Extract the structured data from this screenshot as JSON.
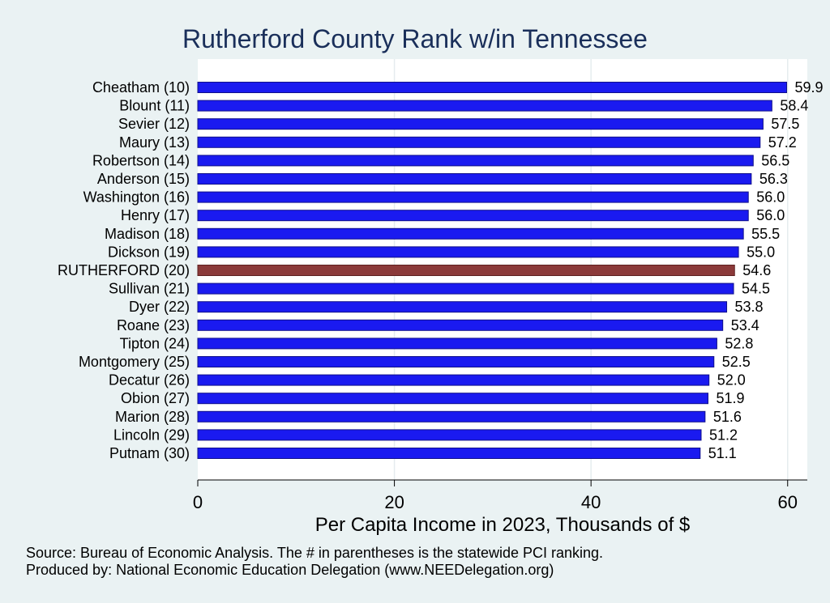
{
  "chart_data": {
    "type": "bar",
    "orientation": "horizontal",
    "title": "Rutherford County Rank w/in Tennessee",
    "xlabel": "Per Capita Income in 2023, Thousands of $",
    "ylabel": "",
    "xlim": [
      0,
      62
    ],
    "xticks": [
      0,
      20,
      40,
      60
    ],
    "grid": true,
    "categories": [
      "Cheatham (10)",
      "Blount (11)",
      "Sevier (12)",
      "Maury (13)",
      "Robertson (14)",
      "Anderson (15)",
      "Washington (16)",
      "Henry (17)",
      "Madison (18)",
      "Dickson (19)",
      "RUTHERFORD (20)",
      "Sullivan (21)",
      "Dyer (22)",
      "Roane (23)",
      "Tipton (24)",
      "Montgomery (25)",
      "Decatur (26)",
      "Obion (27)",
      "Marion (28)",
      "Lincoln (29)",
      "Putnam (30)"
    ],
    "values": [
      59.9,
      58.4,
      57.5,
      57.2,
      56.5,
      56.3,
      56.0,
      56.0,
      55.5,
      55.0,
      54.6,
      54.5,
      53.8,
      53.4,
      52.8,
      52.5,
      52.0,
      51.9,
      51.6,
      51.2,
      51.1
    ],
    "value_labels": [
      "59.9",
      "58.4",
      "57.5",
      "57.2",
      "56.5",
      "56.3",
      "56.0",
      "56.0",
      "55.5",
      "55.0",
      "54.6",
      "54.5",
      "53.8",
      "53.4",
      "52.8",
      "52.5",
      "52.0",
      "51.9",
      "51.6",
      "51.2",
      "51.1"
    ],
    "highlight_index": 10,
    "colors": {
      "bar": "#1a1af0",
      "bar_stroke": "#10108a",
      "highlight": "#8b3a3a",
      "highlight_stroke": "#5e2020",
      "background": "#eaf2f3",
      "plot_bg": "#ffffff",
      "title": "#1a2f5a"
    }
  },
  "notes": {
    "source": "Source: Bureau of Economic Analysis. The # in parentheses is the statewide PCI ranking.",
    "produced_by": "Produced by: National Economic Education Delegation (www.NEEDelegation.org)"
  }
}
